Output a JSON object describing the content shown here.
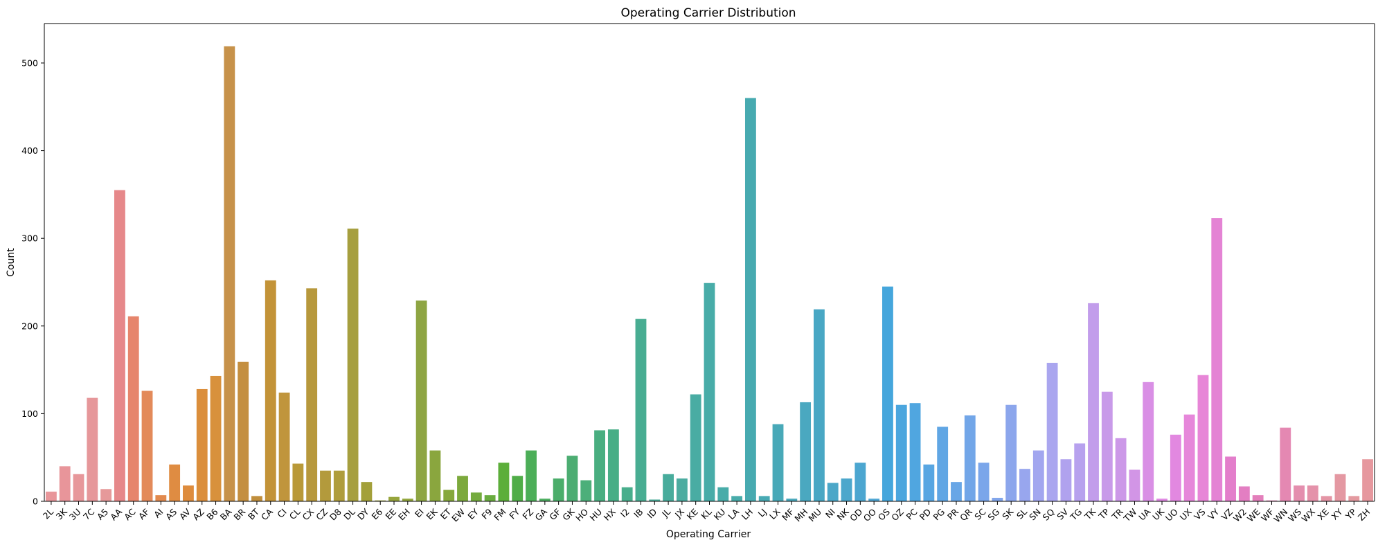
{
  "chart_data": {
    "type": "bar",
    "title": "Operating Carrier Distribution",
    "xlabel": "Operating Carrier",
    "ylabel": "Count",
    "ylim": [
      0,
      545
    ],
    "yticks": [
      0,
      100,
      200,
      300,
      400,
      500
    ],
    "grid": false,
    "categories": [
      "2L",
      "3K",
      "3U",
      "7C",
      "A5",
      "AA",
      "AC",
      "AF",
      "AI",
      "AS",
      "AV",
      "AZ",
      "B6",
      "BA",
      "BR",
      "BT",
      "CA",
      "CI",
      "CL",
      "CX",
      "CZ",
      "D8",
      "DL",
      "DY",
      "E6",
      "EE",
      "EH",
      "EI",
      "EK",
      "ET",
      "EW",
      "EY",
      "F9",
      "FM",
      "FY",
      "FZ",
      "GA",
      "GF",
      "GK",
      "HO",
      "HU",
      "HX",
      "I2",
      "IB",
      "ID",
      "JL",
      "JX",
      "KE",
      "KL",
      "KU",
      "LA",
      "LH",
      "LJ",
      "LX",
      "MF",
      "MH",
      "MU",
      "NI",
      "NK",
      "OD",
      "OO",
      "OS",
      "OZ",
      "PC",
      "PD",
      "PG",
      "PR",
      "QR",
      "SC",
      "SG",
      "SK",
      "SL",
      "SN",
      "SQ",
      "SV",
      "TG",
      "TK",
      "TP",
      "TR",
      "TW",
      "UA",
      "UK",
      "UO",
      "UX",
      "VS",
      "VY",
      "VZ",
      "W2",
      "WE",
      "WF",
      "WN",
      "WS",
      "WX",
      "XE",
      "XY",
      "YP",
      "ZH"
    ],
    "values": [
      11,
      40,
      31,
      118,
      14,
      355,
      211,
      126,
      7,
      42,
      18,
      128,
      143,
      519,
      159,
      6,
      252,
      124,
      43,
      243,
      35,
      35,
      311,
      22,
      1,
      5,
      3,
      229,
      58,
      13,
      29,
      10,
      7,
      44,
      29,
      58,
      3,
      26,
      52,
      24,
      81,
      82,
      16,
      208,
      2,
      31,
      26,
      122,
      249,
      16,
      6,
      460,
      6,
      88,
      3,
      113,
      219,
      21,
      26,
      44,
      3,
      245,
      110,
      112,
      42,
      85,
      22,
      98,
      44,
      4,
      110,
      37,
      58,
      158,
      48,
      66,
      226,
      125,
      72,
      36,
      136,
      3,
      76,
      99,
      144,
      323,
      51,
      17,
      7,
      1,
      84,
      18,
      18,
      6,
      31,
      6,
      48
    ],
    "colors": [
      "#e8969a",
      "#e8959a",
      "#e7979a",
      "#e6979a",
      "#e6999a",
      "#e6888a",
      "#e6856c",
      "#e38a5a",
      "#e28a4e",
      "#df8c42",
      "#de8c3d",
      "#db8e3b",
      "#d8913c",
      "#c7924a",
      "#c48f40",
      "#c08e3c",
      "#c39338",
      "#c0953c",
      "#b99938",
      "#b7983c",
      "#b39a3c",
      "#af9d3c",
      "#a69f3f",
      "#a3a03a",
      "#9fa33a",
      "#97a53c",
      "#93a63c",
      "#8ea543",
      "#8aa63e",
      "#86a83c",
      "#7ca93c",
      "#74ab3e",
      "#6aac40",
      "#5cae3a",
      "#50ad48",
      "#4cae58",
      "#4cae60",
      "#4bad6a",
      "#4cad72",
      "#4caf7a",
      "#49ae80",
      "#48ae86",
      "#48ae8c",
      "#48ad92",
      "#48ac98",
      "#48ac9c",
      "#4baca0",
      "#49aca3",
      "#48aca8",
      "#48aca9",
      "#48acaa",
      "#47aab0",
      "#48aab4",
      "#48a9b8",
      "#49a8bc",
      "#4aa8c0",
      "#49a7c4",
      "#4ba7c8",
      "#4ca7cc",
      "#4ca6d0",
      "#50a6d4",
      "#45a6dc",
      "#4ba6de",
      "#50a6e0",
      "#58a6e2",
      "#60a6e4",
      "#68a6e6",
      "#72a6e8",
      "#7aa6ea",
      "#82a6eb",
      "#8ca6ec",
      "#98a6ee",
      "#a2a6ef",
      "#aaa6ef",
      "#b0a2ee",
      "#b7a1ee",
      "#c29deb",
      "#c89ae9",
      "#cc98e8",
      "#d295e6",
      "#d98fe5",
      "#df8ae3",
      "#e288e0",
      "#e687da",
      "#e786d7",
      "#e483d4",
      "#e37ecb",
      "#e37ec2",
      "#e37fbb",
      "#e483b6",
      "#e488b2",
      "#e48eae",
      "#e492aa",
      "#e495a5",
      "#e498a2",
      "#e49aa0",
      "#e6989e"
    ]
  }
}
